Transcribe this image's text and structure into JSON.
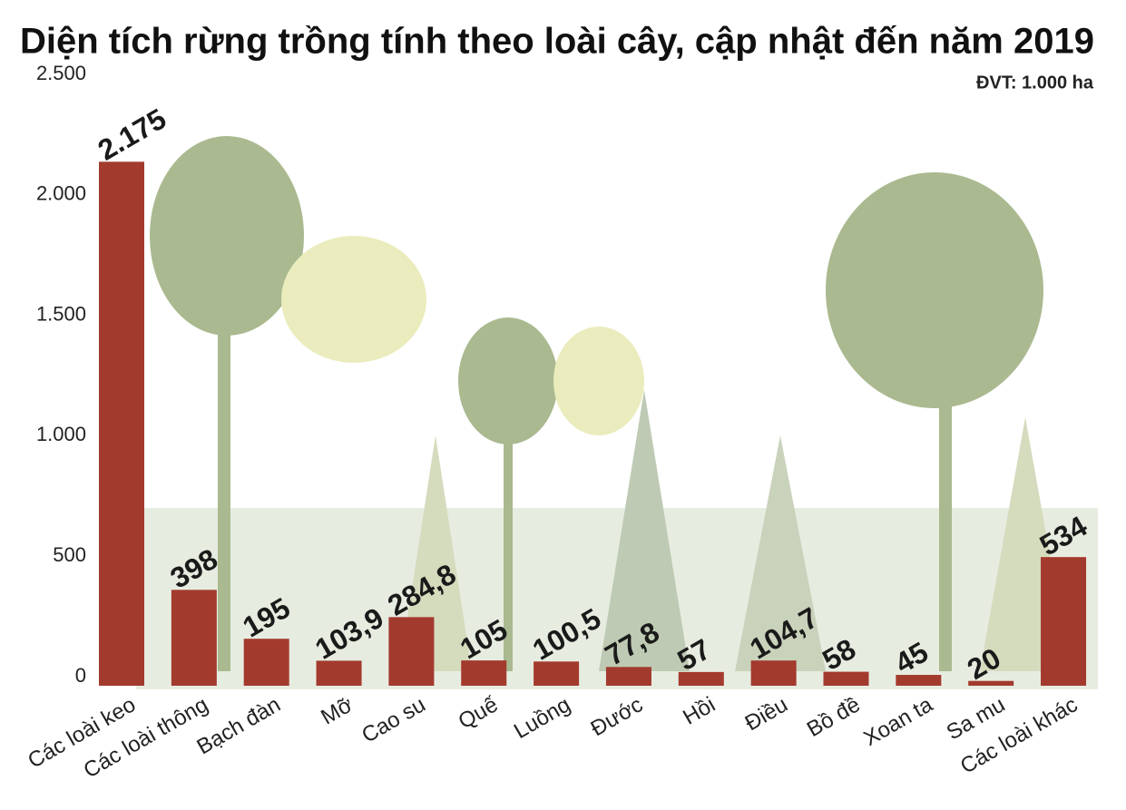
{
  "chart_data": {
    "type": "bar",
    "title": "Diện tích rừng trồng tính theo loài cây, cập nhật đến năm 2019",
    "unit_note": "ĐVT: 1.000 ha",
    "categories": [
      "Các loài keo",
      "Các loài thông",
      "Bạch đàn",
      "Mỡ",
      "Cao su",
      "Quế",
      "Luồng",
      "Đước",
      "Hồi",
      "Điều",
      "Bồ đề",
      "Xoan ta",
      "Sa mu",
      "Các loài khác"
    ],
    "values": [
      2175,
      398,
      195,
      103.9,
      284.8,
      105,
      100.5,
      77.8,
      57,
      104.7,
      58,
      45,
      20,
      534
    ],
    "value_labels": [
      "2.175",
      "398",
      "195",
      "103,9",
      "284,8",
      "105",
      "100,5",
      "77,8",
      "57",
      "104,7",
      "58",
      "45",
      "20",
      "534"
    ],
    "color": "#a33a2e",
    "ylim": [
      0,
      2500
    ],
    "yticks": [
      0,
      500,
      {
        "value": 1000,
        "label": "1.000"
      },
      {
        "value": 1500,
        "label": "1.500"
      },
      {
        "value": 2000,
        "label": "2.000"
      },
      {
        "value": 2500,
        "label": "2.500"
      }
    ],
    "grid": false
  }
}
